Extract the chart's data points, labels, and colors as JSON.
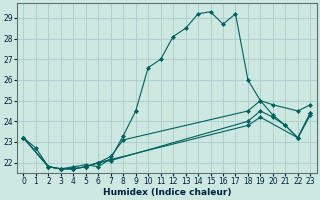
{
  "xlabel": "Humidex (Indice chaleur)",
  "background_color": "#cce8e0",
  "grid_color": "#aacccc",
  "line_color": "#006060",
  "marker": "D",
  "marker_size": 2.0,
  "lw": 0.8,
  "xlim": [
    -0.5,
    23.5
  ],
  "ylim": [
    21.5,
    29.7
  ],
  "xticks": [
    0,
    1,
    2,
    3,
    4,
    5,
    6,
    7,
    8,
    9,
    10,
    11,
    12,
    13,
    14,
    15,
    16,
    17,
    18,
    19,
    20,
    21,
    22,
    23
  ],
  "yticks": [
    22,
    23,
    24,
    25,
    26,
    27,
    28,
    29
  ],
  "tick_labelsize": 5.5,
  "xlabel_fontsize": 6.5,
  "series1": [
    23.2,
    22.7,
    21.8,
    21.7,
    21.8,
    21.9,
    21.8,
    22.2,
    23.3,
    24.5,
    26.6,
    27.0,
    28.1,
    28.5,
    29.2,
    29.3,
    28.7,
    29.2,
    26.0,
    25.0,
    24.3,
    23.8,
    23.2,
    24.3
  ],
  "series2_x": [
    0,
    2,
    3,
    4,
    5,
    6,
    7,
    8,
    18,
    19,
    20,
    22,
    23
  ],
  "series2_y": [
    23.2,
    21.8,
    21.7,
    21.7,
    21.8,
    22.0,
    22.3,
    23.1,
    24.5,
    25.0,
    24.8,
    24.5,
    24.8
  ],
  "series3_x": [
    0,
    2,
    3,
    4,
    5,
    6,
    7,
    18,
    19,
    20,
    21,
    22,
    23
  ],
  "series3_y": [
    23.2,
    21.8,
    21.7,
    21.7,
    21.8,
    22.0,
    22.1,
    24.0,
    24.5,
    24.2,
    23.8,
    23.2,
    24.4
  ],
  "series4_x": [
    0,
    2,
    3,
    4,
    5,
    6,
    18,
    19,
    22,
    23
  ],
  "series4_y": [
    23.2,
    21.8,
    21.7,
    21.7,
    21.8,
    22.0,
    23.8,
    24.2,
    23.2,
    24.4
  ]
}
